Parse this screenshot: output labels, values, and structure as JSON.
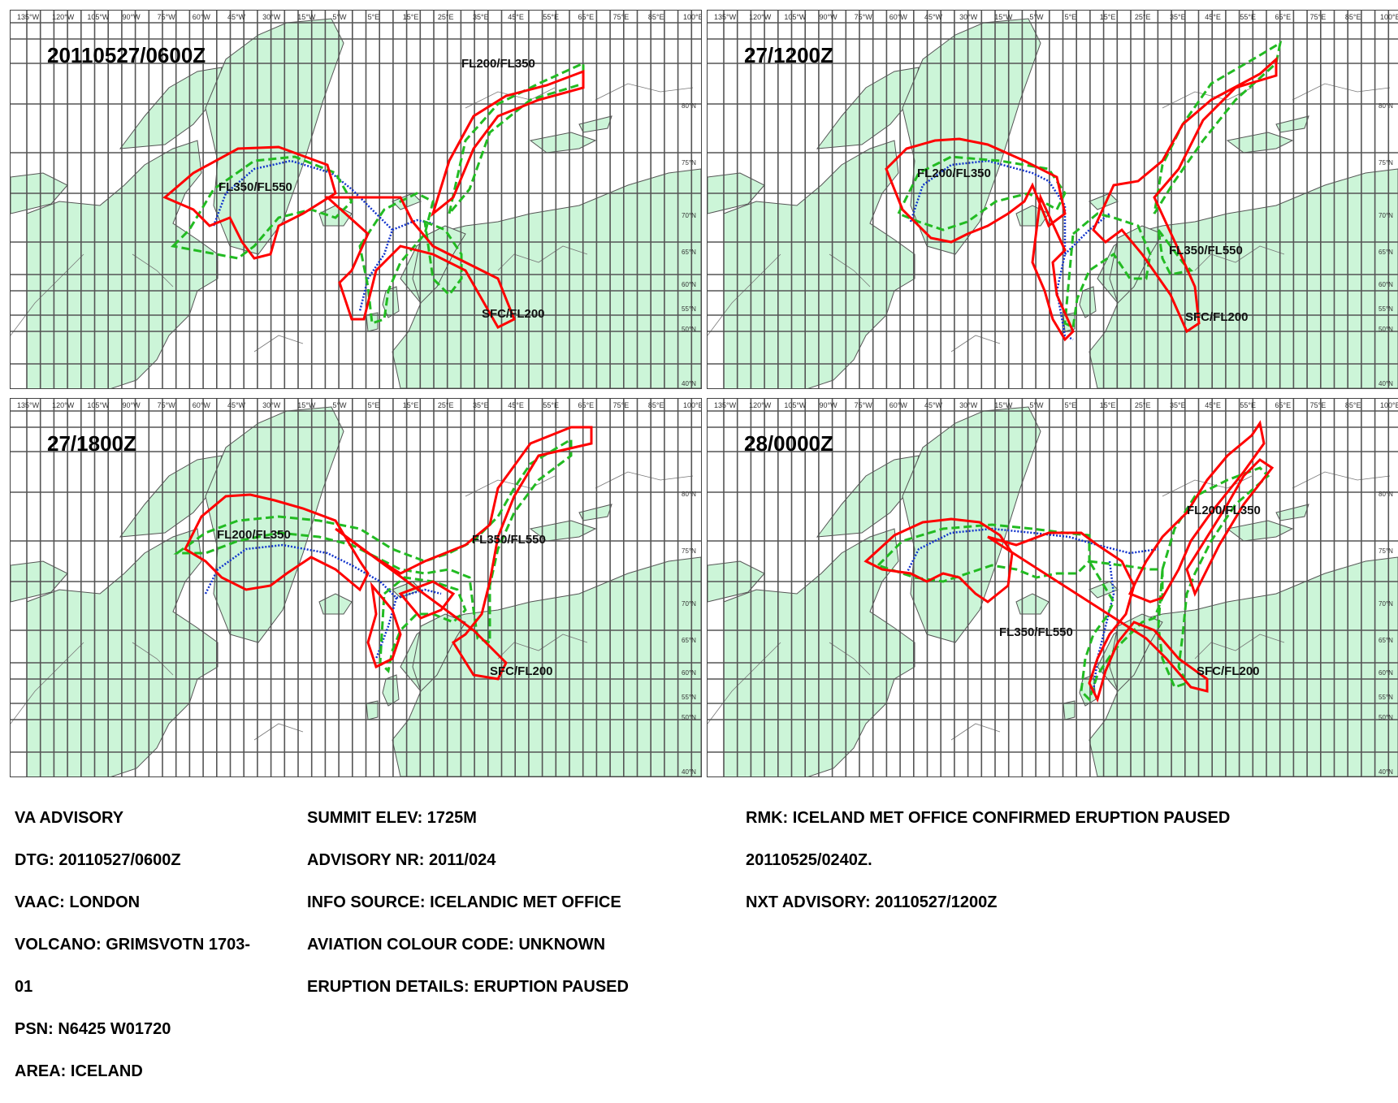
{
  "panels": [
    {
      "title": "20110527/0600Z",
      "layer_labels": [
        {
          "text": "FL200/FL350",
          "level": "FL200/FL350"
        },
        {
          "text": "FL350/FL550",
          "level": "FL350/FL550"
        },
        {
          "text": "SFC/FL200",
          "level": "SFC/FL200"
        }
      ]
    },
    {
      "title": "27/1200Z",
      "layer_labels": [
        {
          "text": "FL350/FL550",
          "level": "FL350/FL550"
        },
        {
          "text": "FL200/FL350",
          "level": "FL200/FL350"
        },
        {
          "text": "SFC/FL200",
          "level": "SFC/FL200"
        }
      ]
    },
    {
      "title": "27/1800Z",
      "layer_labels": [
        {
          "text": "FL350/FL550",
          "level": "FL350/FL550"
        },
        {
          "text": "FL200/FL350",
          "level": "FL200/FL350"
        },
        {
          "text": "SFC/FL200",
          "level": "SFC/FL200"
        }
      ]
    },
    {
      "title": "28/0000Z",
      "layer_labels": [
        {
          "text": "FL200/FL350",
          "level": "FL200/FL350"
        },
        {
          "text": "FL350/FL550",
          "level": "FL350/FL550"
        },
        {
          "text": "SFC/FL200",
          "level": "SFC/FL200"
        }
      ]
    }
  ],
  "longitude_labels": [
    "135°W",
    "120°W",
    "105°W",
    "90°W",
    "75°W",
    "60°W",
    "45°W",
    "30°W",
    "15°W",
    "5°W",
    "5°E",
    "15°E",
    "25°E",
    "35°E",
    "45°E",
    "55°E",
    "65°E",
    "75°E",
    "85°E",
    "100°E"
  ],
  "latitude_labels": [
    "80°N",
    "75°N",
    "70°N",
    "65°N",
    "60°N",
    "55°N",
    "50°N",
    "40°N"
  ],
  "advisory": {
    "col1": [
      "VA ADVISORY",
      "DTG:  20110527/0600Z",
      "VAAC:  LONDON",
      "VOLCANO:  GRIMSVOTN 1703-",
      "01",
      "PSN:  N6425 W01720",
      "AREA:  ICELAND"
    ],
    "col2": [
      "SUMMIT ELEV:  1725M",
      "ADVISORY NR:  2011/024",
      "INFO SOURCE:  ICELANDIC MET OFFICE",
      "AVIATION COLOUR CODE:  UNKNOWN",
      "ERUPTION DETAILS:  ERUPTION PAUSED"
    ],
    "col3": [
      "RMK:  ICELAND MET OFFICE CONFIRMED ERUPTION PAUSED",
      "20110525/0240Z.",
      "NXT ADVISORY:  20110527/1200Z"
    ]
  },
  "colors": {
    "land": "#ccf5d8",
    "grid": "#555555",
    "sfc_fl200": "#ff0000",
    "fl200_fl350": "#22bb22",
    "fl350_fl550": "#1133cc"
  }
}
